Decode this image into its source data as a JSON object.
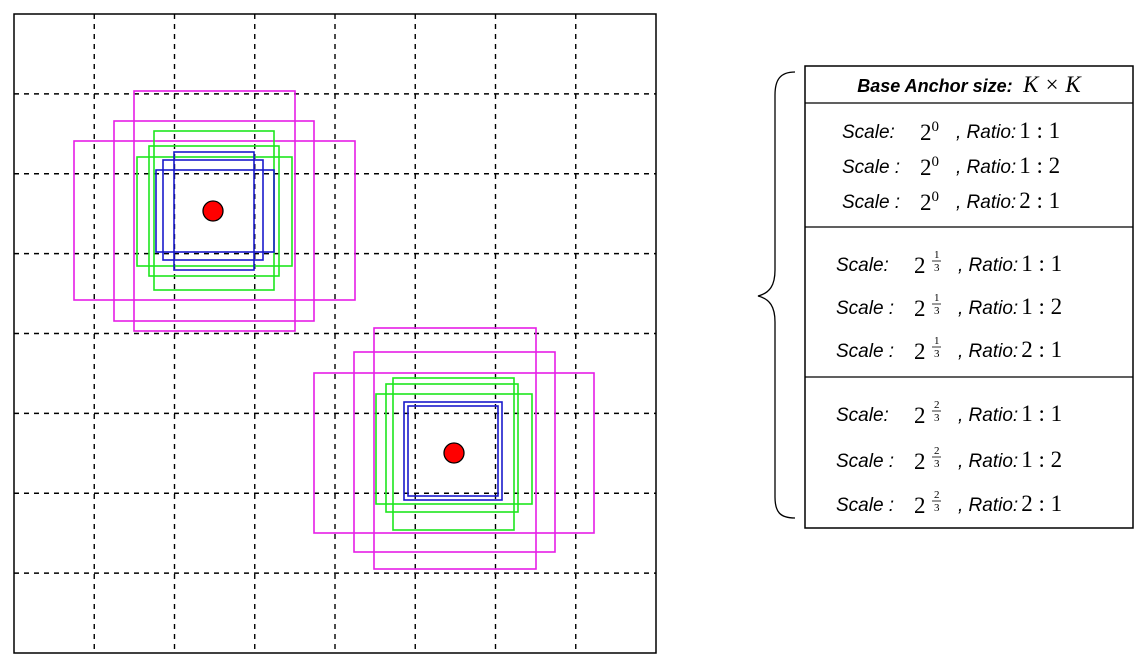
{
  "grid": {
    "rows": 8,
    "cols": 8
  },
  "colors": {
    "grid_line": "#000000",
    "scale_0": "#1a1acc",
    "scale_1_3": "#1ee61e",
    "scale_2_3": "#e61ee6",
    "center_point": "#ff0000"
  },
  "legend": {
    "header_label": "Base Anchor size:",
    "header_formula": "K × K",
    "groups": [
      {
        "scale_base": "2",
        "scale_exp": "0",
        "rows": [
          {
            "scale_label": "Scale:",
            "ratio_label": ", Ratio:",
            "ratio_value": "1 : 1"
          },
          {
            "scale_label": "Scale :",
            "ratio_label": ", Ratio:",
            "ratio_value": "1 : 2"
          },
          {
            "scale_label": "Scale :",
            "ratio_label": ", Ratio:",
            "ratio_value": "2 : 1"
          }
        ]
      },
      {
        "scale_base": "2",
        "scale_exp_num": "1",
        "scale_exp_den": "3",
        "rows": [
          {
            "scale_label": "Scale:",
            "ratio_label": ", Ratio:",
            "ratio_value": "1 : 1"
          },
          {
            "scale_label": "Scale :",
            "ratio_label": ", Ratio:",
            "ratio_value": "1 : 2"
          },
          {
            "scale_label": "Scale :",
            "ratio_label": ", Ratio:",
            "ratio_value": "2 : 1"
          }
        ]
      },
      {
        "scale_base": "2",
        "scale_exp_num": "2",
        "scale_exp_den": "3",
        "rows": [
          {
            "scale_label": "Scale:",
            "ratio_label": ", Ratio:",
            "ratio_value": "1 : 1"
          },
          {
            "scale_label": "Scale :",
            "ratio_label": ", Ratio:",
            "ratio_value": "1 : 2"
          },
          {
            "scale_label": "Scale :",
            "ratio_label": ", Ratio:",
            "ratio_value": "2 : 1"
          }
        ]
      }
    ]
  }
}
